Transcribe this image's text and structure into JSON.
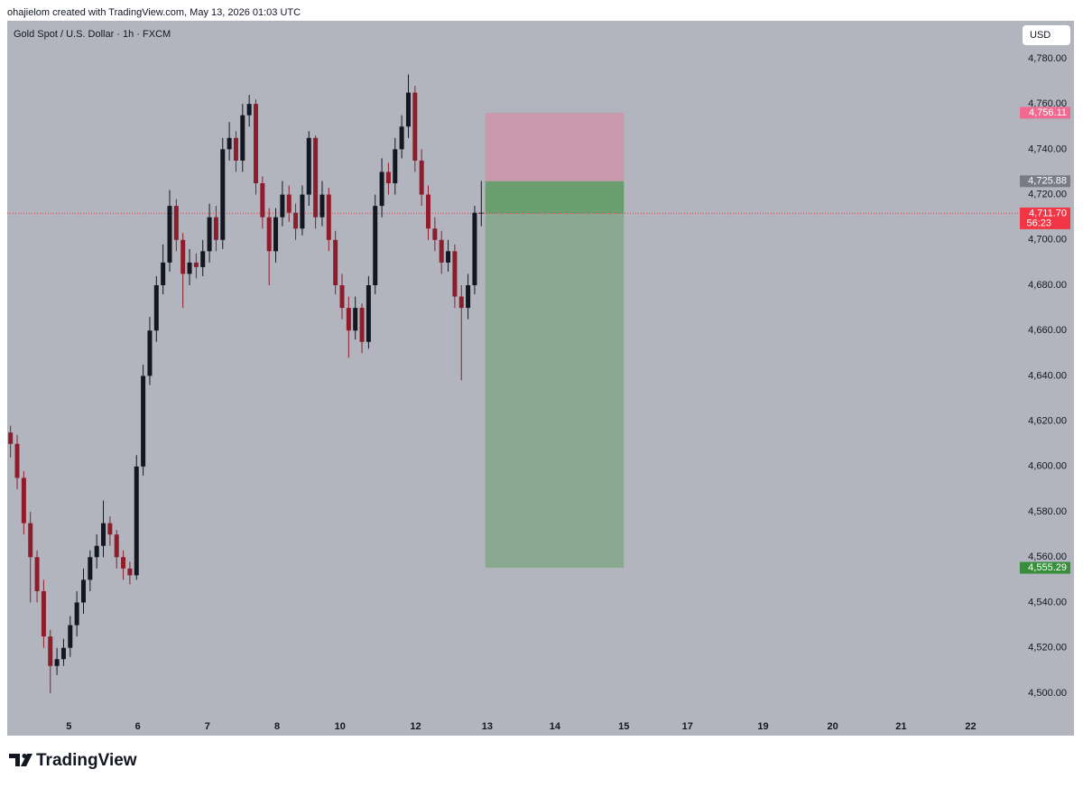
{
  "header": {
    "attribution": "ohajielom created with TradingView.com, May 13, 2026 01:03 UTC",
    "logo": "TradingView"
  },
  "chart_data": {
    "type": "candlestick",
    "title": "Gold Spot / U.S. Dollar · 1h · FXCM",
    "currency": "USD",
    "x": [
      0.5,
      1.5,
      2.5,
      3.5,
      4.5,
      5.5,
      6.5,
      7.5,
      8.5,
      9.5,
      10.5,
      11.5,
      12.5,
      13.5,
      14.5,
      15.5,
      16.5,
      17.5,
      18.5,
      19.5,
      20.5,
      21.5,
      22.5,
      23.5,
      24.5,
      25.5,
      26.5,
      27.5,
      28.5,
      29.5,
      30.5,
      31.5,
      32.5,
      33.5,
      34.5,
      35.5,
      36.5,
      37.5,
      38.5,
      39.5,
      40.5,
      41.5,
      42.5,
      43.5,
      44.5,
      45.5,
      46.5,
      47.5,
      48.5,
      49.5,
      50.5,
      51.5,
      52.5,
      53.5,
      54.5,
      55.5,
      56.5,
      57.5,
      58.5,
      59.5,
      60.5,
      61.5,
      62.5,
      63.5,
      64.5,
      65.5,
      66.5,
      67.5,
      68.5,
      69.5,
      70.5,
      71.5
    ],
    "open": [
      4615,
      4610,
      4595,
      4575,
      4560,
      4545,
      4525,
      4512,
      4515,
      4520,
      4530,
      4540,
      4550,
      4560,
      4565,
      4575,
      4570,
      4560,
      4555,
      4552,
      4600,
      4640,
      4660,
      4680,
      4690,
      4715,
      4700,
      4685,
      4690,
      4688,
      4695,
      4710,
      4700,
      4740,
      4745,
      4735,
      4755,
      4760,
      4725,
      4710,
      4695,
      4710,
      4720,
      4712,
      4705,
      4720,
      4745,
      4710,
      4720,
      4700,
      4680,
      4670,
      4660,
      4670,
      4655,
      4680,
      4715,
      4730,
      4725,
      4740,
      4750,
      4765,
      4735,
      4720,
      4705,
      4700,
      4690,
      4695,
      4675,
      4670,
      4680,
      4712
    ],
    "high": [
      4618,
      4614,
      4598,
      4580,
      4563,
      4550,
      4528,
      4520,
      4524,
      4534,
      4545,
      4555,
      4563,
      4570,
      4585,
      4578,
      4572,
      4563,
      4558,
      4605,
      4645,
      4666,
      4684,
      4698,
      4722,
      4718,
      4703,
      4696,
      4694,
      4700,
      4716,
      4715,
      4745,
      4752,
      4748,
      4760,
      4764,
      4762,
      4728,
      4714,
      4714,
      4726,
      4724,
      4716,
      4724,
      4748,
      4746,
      4726,
      4723,
      4704,
      4685,
      4675,
      4675,
      4672,
      4684,
      4720,
      4736,
      4734,
      4745,
      4755,
      4773,
      4768,
      4740,
      4724,
      4710,
      4704,
      4700,
      4698,
      4680,
      4685,
      4715,
      4726
    ],
    "low": [
      4604,
      4590,
      4570,
      4540,
      4540,
      4520,
      4500,
      4508,
      4512,
      4516,
      4525,
      4535,
      4545,
      4555,
      4560,
      4565,
      4555,
      4550,
      4548,
      4550,
      4596,
      4636,
      4655,
      4676,
      4686,
      4695,
      4670,
      4680,
      4683,
      4684,
      4690,
      4695,
      4696,
      4735,
      4730,
      4730,
      4750,
      4720,
      4705,
      4680,
      4690,
      4706,
      4708,
      4700,
      4702,
      4715,
      4705,
      4706,
      4695,
      4676,
      4665,
      4648,
      4656,
      4650,
      4652,
      4676,
      4710,
      4720,
      4720,
      4736,
      4745,
      4730,
      4715,
      4700,
      4695,
      4685,
      4686,
      4670,
      4638,
      4665,
      4676,
      4706
    ],
    "close": [
      4610,
      4595,
      4575,
      4560,
      4545,
      4525,
      4512,
      4515,
      4520,
      4530,
      4540,
      4550,
      4560,
      4565,
      4575,
      4570,
      4560,
      4555,
      4552,
      4600,
      4640,
      4660,
      4680,
      4690,
      4715,
      4700,
      4685,
      4690,
      4688,
      4695,
      4710,
      4700,
      4740,
      4745,
      4735,
      4755,
      4760,
      4725,
      4710,
      4695,
      4710,
      4720,
      4712,
      4705,
      4720,
      4745,
      4710,
      4720,
      4700,
      4680,
      4670,
      4660,
      4670,
      4655,
      4680,
      4715,
      4730,
      4725,
      4740,
      4750,
      4765,
      4735,
      4720,
      4705,
      4700,
      4690,
      4695,
      4675,
      4670,
      4680,
      4712,
      4712
    ],
    "up_color": "#131722",
    "down_color": "#8e1c2b",
    "background": "#b2b5be",
    "xlim": [
      0,
      150
    ],
    "xticks": [
      {
        "value": 9.3,
        "label": "5"
      },
      {
        "value": 19.7,
        "label": "6"
      },
      {
        "value": 30.2,
        "label": "7"
      },
      {
        "value": 40.7,
        "label": "8"
      },
      {
        "value": 50.2,
        "label": "10"
      },
      {
        "value": 61.6,
        "label": "12"
      },
      {
        "value": 72.4,
        "label": "13"
      },
      {
        "value": 82.6,
        "label": "14"
      },
      {
        "value": 93.0,
        "label": "15"
      },
      {
        "value": 102.6,
        "label": "17"
      },
      {
        "value": 114.0,
        "label": "19"
      },
      {
        "value": 124.5,
        "label": "20"
      },
      {
        "value": 134.8,
        "label": "21"
      },
      {
        "value": 145.3,
        "label": "22"
      }
    ],
    "ylim": [
      4491.2,
      4796.7
    ],
    "yticks": [
      {
        "value": 4500,
        "label": "4,500.00"
      },
      {
        "value": 4520,
        "label": "4,520.00"
      },
      {
        "value": 4540,
        "label": "4,540.00"
      },
      {
        "value": 4560,
        "label": "4,560.00"
      },
      {
        "value": 4580,
        "label": "4,580.00"
      },
      {
        "value": 4600,
        "label": "4,600.00"
      },
      {
        "value": 4620,
        "label": "4,620.00"
      },
      {
        "value": 4640,
        "label": "4,640.00"
      },
      {
        "value": 4660,
        "label": "4,660.00"
      },
      {
        "value": 4680,
        "label": "4,680.00"
      },
      {
        "value": 4700,
        "label": "4,700.00"
      },
      {
        "value": 4720,
        "label": "4,720.00"
      },
      {
        "value": 4740,
        "label": "4,740.00"
      },
      {
        "value": 4760,
        "label": "4,760.00"
      },
      {
        "value": 4780,
        "label": "4,780.00"
      }
    ],
    "position": {
      "x": [
        72.1,
        93.0
      ],
      "stop": {
        "value": 4756.11,
        "label": "4,756.11",
        "color": "#f0698f",
        "zone_color": "#c99aad"
      },
      "entry": {
        "value": 4725.88,
        "label": "4,725.88",
        "color": "#787b86",
        "zone_color": "#6a9e6f"
      },
      "target": {
        "value": 4555.29,
        "label": "4,555.29",
        "color": "#388e3c",
        "zone_color": "#89a88f"
      }
    },
    "last_price": {
      "value": 4711.7,
      "label": "4,711.70",
      "countdown": "56:23",
      "color": "#f23645"
    }
  }
}
